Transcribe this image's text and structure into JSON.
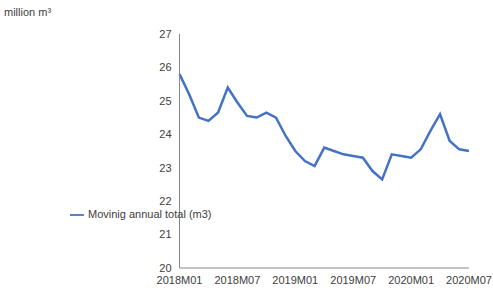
{
  "chart_data": {
    "type": "line",
    "y_label": "million m³",
    "categories": [
      "2018M01",
      null,
      null,
      null,
      null,
      null,
      "2018M07",
      null,
      null,
      null,
      null,
      null,
      "2019M01",
      null,
      null,
      null,
      null,
      null,
      "2019M07",
      null,
      null,
      null,
      null,
      null,
      "2020M01",
      null,
      null,
      null,
      null,
      null,
      "2020M07"
    ],
    "series": [
      {
        "name": "Movinig annual total (m3)",
        "color": "#4472c4",
        "values": [
          25.8,
          25.2,
          24.5,
          24.4,
          24.65,
          25.4,
          24.95,
          24.55,
          24.5,
          24.65,
          24.5,
          23.95,
          23.5,
          23.2,
          23.05,
          23.6,
          23.5,
          23.4,
          23.35,
          23.3,
          22.9,
          22.65,
          23.4,
          23.35,
          23.3,
          23.55,
          24.1,
          24.6,
          23.8,
          23.55,
          23.5
        ]
      }
    ],
    "ylim": [
      20,
      27
    ],
    "yticks": [
      20,
      21,
      22,
      23,
      24,
      25,
      26,
      27
    ],
    "grid": false,
    "legend": "lower left"
  }
}
